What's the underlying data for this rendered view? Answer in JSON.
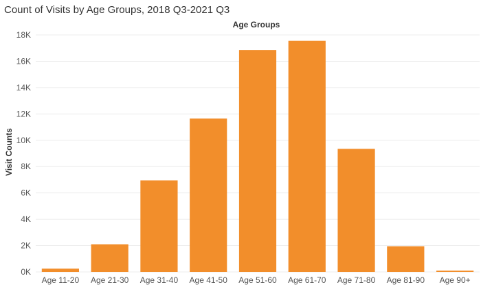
{
  "chart_data": {
    "type": "bar",
    "title": "Count of Visits by Age Groups, 2018 Q3-2021 Q3",
    "header_label": "Age Groups",
    "ylabel": "Visit Counts",
    "categories": [
      "Age 11-20",
      "Age 21-30",
      "Age 31-40",
      "Age 41-50",
      "Age 51-60",
      "Age 61-70",
      "Age 71-80",
      "Age 81-90",
      "Age 90+"
    ],
    "values": [
      250,
      2100,
      6950,
      11650,
      16850,
      17550,
      9350,
      1950,
      100
    ],
    "ylim": [
      0,
      18000
    ],
    "yticks": [
      0,
      2000,
      4000,
      6000,
      8000,
      10000,
      12000,
      14000,
      16000,
      18000
    ],
    "ytick_labels": [
      "0K",
      "2K",
      "4K",
      "6K",
      "8K",
      "10K",
      "12K",
      "14K",
      "16K",
      "18K"
    ],
    "grid": true,
    "bar_color": "#F28E2B"
  }
}
